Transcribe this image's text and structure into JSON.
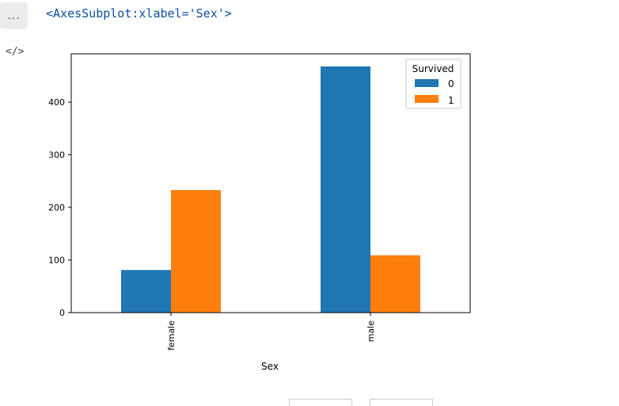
{
  "cell": {
    "more_label": "...",
    "output_text": "<AxesSubplot:xlabel='Sex'>",
    "code_icon": "</>"
  },
  "colors": {
    "series0": "#1f77b4",
    "series1": "#ff7f0e"
  },
  "chart_data": {
    "type": "bar",
    "categories": [
      "female",
      "male"
    ],
    "series": [
      {
        "name": "0",
        "values": [
          81,
          468
        ]
      },
      {
        "name": "1",
        "values": [
          233,
          109
        ]
      }
    ],
    "xlabel": "Sex",
    "ylabel": "",
    "ylim": [
      0,
      492
    ],
    "yticks": [
      0,
      100,
      200,
      300,
      400
    ],
    "legend": {
      "title": "Survived",
      "placement": "top-right"
    },
    "grid": false
  }
}
